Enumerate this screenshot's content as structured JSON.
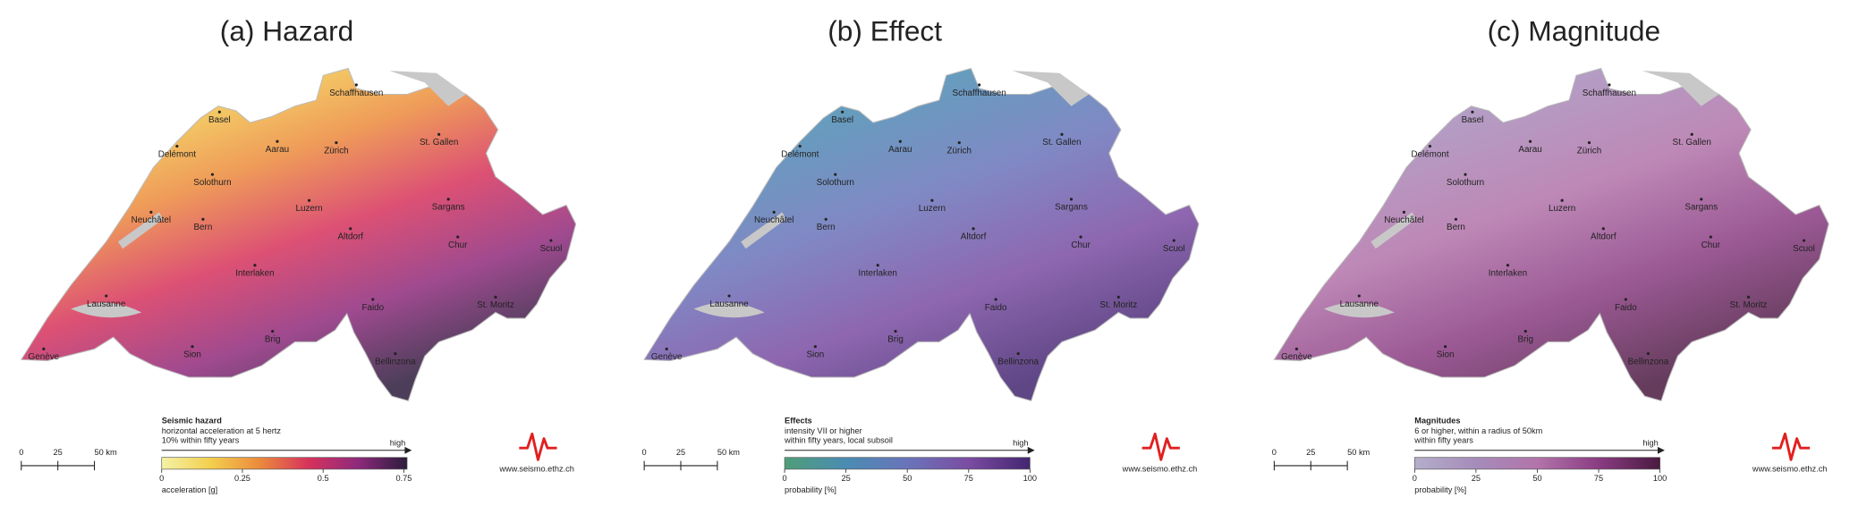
{
  "panels": [
    {
      "title": "(a) Hazard",
      "legend": {
        "title": "Seismic hazard",
        "lines": [
          "horizontal acceleration at 5 hertz",
          "10% within fifty years"
        ],
        "high": "high",
        "label": "acceleration [g]",
        "lim": [
          0,
          0.76
        ],
        "ticks": [
          0,
          0.25,
          0.5,
          0.75
        ],
        "colors": [
          "#f4f2a6",
          "#f3cf4e",
          "#ec8a3c",
          "#d6325c",
          "#8e2a7c",
          "#2c1c3c"
        ]
      }
    },
    {
      "title": "(b) Effect",
      "legend": {
        "title": "Effects",
        "lines": [
          "intensity VII or higher",
          "within fifty years, local subsoil"
        ],
        "high": "high",
        "label": "probability [%]",
        "lim": [
          0,
          100
        ],
        "ticks": [
          0,
          25,
          50,
          75,
          100
        ],
        "colors": [
          "#4f9e78",
          "#4a8cb2",
          "#6a74ba",
          "#7a4ca2",
          "#432670"
        ]
      }
    },
    {
      "title": "(c) Magnitude",
      "legend": {
        "title": "Magnitudes",
        "lines": [
          "6 or higher, within a radius of 50km",
          "within fifty years"
        ],
        "high": "high",
        "label": "probability [%]",
        "lim": [
          0,
          100
        ],
        "ticks": [
          0,
          25,
          50,
          75,
          100
        ],
        "colors": [
          "#b4aecb",
          "#a68cba",
          "#b274aa",
          "#8a3c82",
          "#4a1a40"
        ]
      }
    }
  ],
  "cities": [
    "Schaffhausen",
    "Basel",
    "Delémont",
    "Aarau",
    "Zürich",
    "St. Gallen",
    "Solothurn",
    "Neuchâtel",
    "Bern",
    "Luzern",
    "Sargans",
    "Altdorf",
    "Chur",
    "Scuol",
    "Interlaken",
    "Lausanne",
    "Faido",
    "St. Moritz",
    "Brig",
    "Sion",
    "Genève",
    "Bellinzona"
  ],
  "scale_bar": {
    "lim": [
      0,
      50
    ],
    "ticks": [
      0,
      25,
      {
        "value": 50,
        "label": "50 km"
      }
    ]
  },
  "website": "www.seismo.ethz.ch"
}
